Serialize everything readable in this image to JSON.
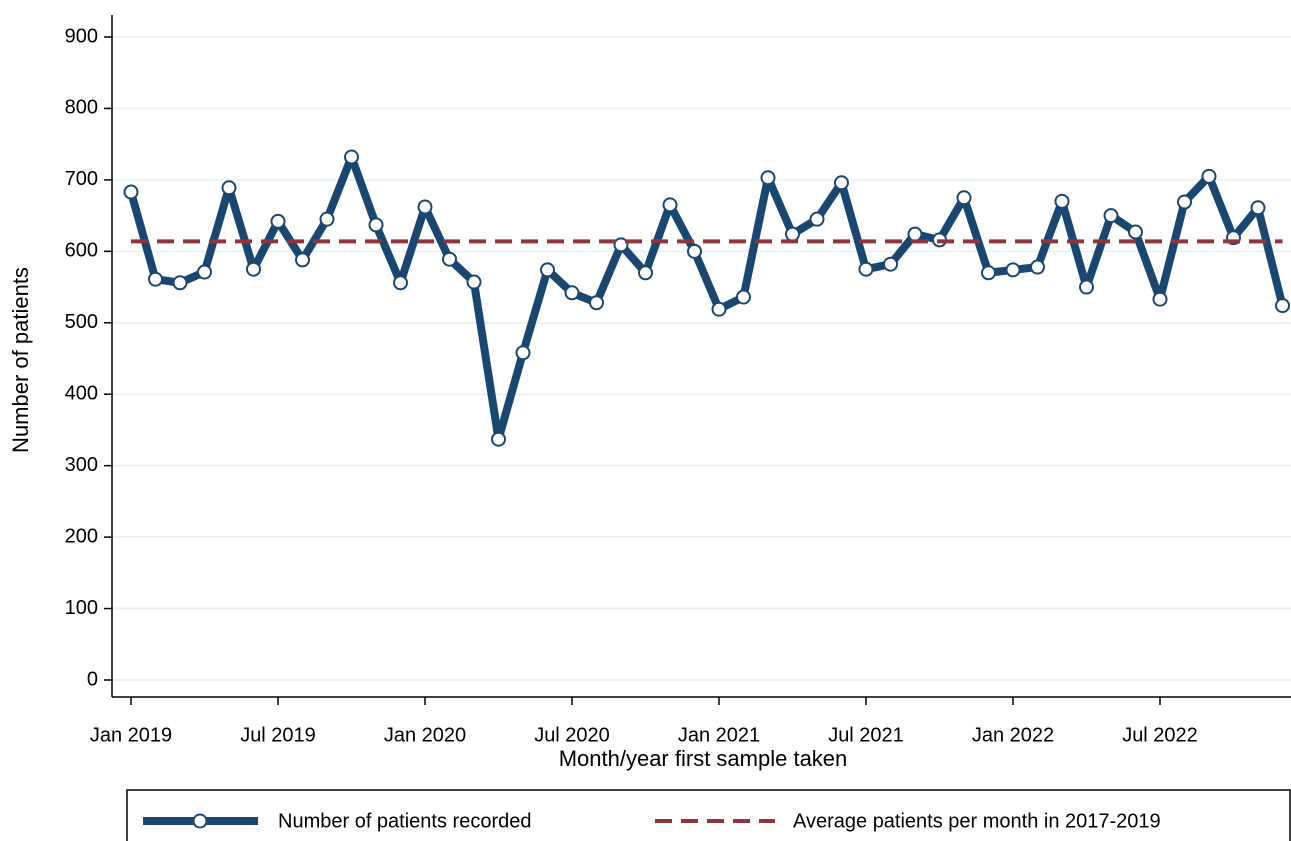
{
  "chart_data": {
    "type": "line",
    "x_label": "Month/year first sample taken",
    "y_label": "Number of patients",
    "categories": [
      "Jan 2019",
      null,
      null,
      null,
      null,
      null,
      "Jul 2019",
      null,
      null,
      null,
      null,
      null,
      "Jan 2020",
      null,
      null,
      null,
      null,
      null,
      "Jul 2020",
      null,
      null,
      null,
      null,
      null,
      "Jan 2021",
      null,
      null,
      null,
      null,
      null,
      "Jul 2021",
      null,
      null,
      null,
      null,
      null,
      "Jan 2022",
      null,
      null,
      null,
      null,
      null,
      "Jul 2022",
      null,
      null,
      null,
      null,
      null
    ],
    "series": [
      {
        "name": "Number of patients recorded",
        "color": "#1a476f",
        "values": [
          683,
          561,
          556,
          571,
          689,
          575,
          642,
          588,
          645,
          732,
          637,
          556,
          662,
          589,
          557,
          337,
          458,
          574,
          542,
          528,
          609,
          570,
          665,
          600,
          519,
          536,
          703,
          624,
          645,
          696,
          575,
          582,
          624,
          616,
          675,
          570,
          574,
          578,
          670,
          550,
          650,
          627,
          533,
          669,
          705,
          619,
          661,
          524
        ]
      },
      {
        "name": "Average patients per month in 2017-2019",
        "color": "#90353b",
        "value": 614,
        "dashed": true
      }
    ],
    "ylim": [
      0,
      900
    ],
    "yticks": [
      0,
      100,
      200,
      300,
      400,
      500,
      600,
      700,
      800,
      900
    ],
    "grid": true,
    "legend": "bottom"
  }
}
